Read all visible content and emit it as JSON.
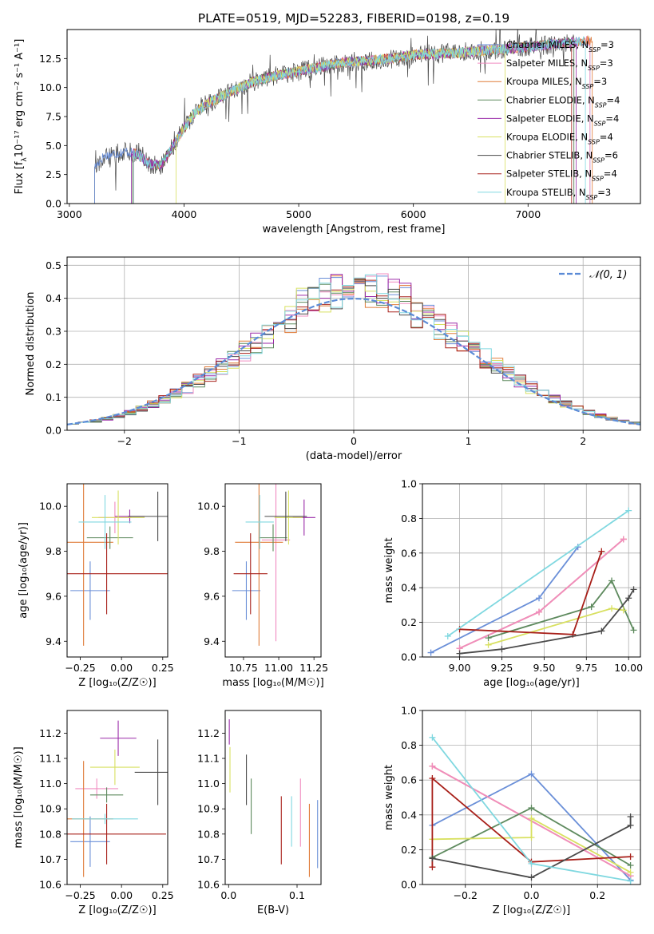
{
  "chart_data": [
    {
      "id": "spectrum",
      "type": "line",
      "title": "PLATE=0519, MJD=52283, FIBERID=0198, z=0.19",
      "xlabel": "wavelength [Angstrom, rest frame]",
      "ylabel_text": "Flux [f",
      "ylabel_sub": "λ",
      "ylabel_rest": "10⁻¹⁷ erg cm⁻² s⁻¹ A⁻¹]",
      "xlim": [
        2980,
        7980
      ],
      "ylim": [
        0,
        15
      ],
      "xticks": [
        3000,
        4000,
        5000,
        6000,
        7000
      ],
      "xtick_labels": [
        "3000",
        "4000",
        "5000",
        "6000",
        "7000"
      ],
      "yticks": [
        0,
        2.5,
        5,
        7.5,
        10,
        12.5
      ],
      "ytick_labels": [
        "0.0",
        "2.5",
        "5.0",
        "7.5",
        "10.0",
        "12.5"
      ],
      "continuum": {
        "x": [
          3220,
          3300,
          3500,
          3600,
          3700,
          3800,
          3900,
          4000,
          4100,
          4200,
          4400,
          4600,
          4800,
          5000,
          5200,
          5400,
          5600,
          5800,
          6000,
          6200,
          6400,
          6600,
          6800,
          7000,
          7200,
          7400,
          7500
        ],
        "y": [
          3.1,
          4.1,
          4.5,
          4.2,
          3.4,
          3.3,
          4.9,
          6.5,
          7.9,
          8.6,
          9.6,
          10.5,
          11.0,
          11.4,
          11.8,
          12.2,
          12.3,
          12.5,
          12.8,
          12.9,
          13.0,
          13.2,
          13.3,
          13.5,
          13.7,
          13.9,
          14.0
        ]
      },
      "legend": [
        {
          "name": "Chabrier MILES",
          "n": "3",
          "color": "#6a8fd8"
        },
        {
          "name": "Salpeter MILES",
          "n": "3",
          "color": "#f08cc0"
        },
        {
          "name": "Kroupa MILES",
          "n": "3",
          "color": "#e07b39"
        },
        {
          "name": "Chabrier ELODIE",
          "n": "4",
          "color": "#5e8a5e"
        },
        {
          "name": "Salpeter ELODIE",
          "n": "4",
          "color": "#9a2aa8"
        },
        {
          "name": "Kroupa ELODIE",
          "n": "4",
          "color": "#d8e060"
        },
        {
          "name": "Chabrier STELIB",
          "n": "6",
          "color": "#4a4a4a"
        },
        {
          "name": "Salpeter STELIB",
          "n": "4",
          "color": "#a8201a"
        },
        {
          "name": "Kroupa STELIB",
          "n": "3",
          "color": "#80d8e0"
        }
      ],
      "legend_n_label": "N",
      "legend_n_sub": "SSP"
    },
    {
      "id": "residuals",
      "type": "histogram",
      "xlabel": "(data-model)/error",
      "ylabel": "Normed distribution",
      "xlim": [
        -2.5,
        2.5
      ],
      "ylim": [
        0,
        0.525
      ],
      "xticks": [
        -2,
        -1,
        0,
        1,
        2
      ],
      "xtick_labels": [
        "−2",
        "−1",
        "0",
        "1",
        "2"
      ],
      "yticks": [
        0,
        0.1,
        0.2,
        0.3,
        0.4,
        0.5
      ],
      "ytick_labels": [
        "0.0",
        "0.1",
        "0.2",
        "0.3",
        "0.4",
        "0.5"
      ],
      "grid": true,
      "gaussian_label": "𝒩(0, 1)",
      "gaussian_color": "#5b8bd6",
      "legend_position": "top-right"
    },
    {
      "id": "age-vs-z",
      "type": "scatter",
      "xlabel": "Z [log₁₀(Z/Z☉)]",
      "ylabel": "age  [log₁₀(age/yr)]",
      "xlim": [
        -0.33,
        0.28
      ],
      "ylim": [
        9.33,
        10.1
      ],
      "xticks": [
        -0.25,
        0,
        0.25
      ],
      "xtick_labels": [
        "−0.25",
        "0.00",
        "0.25"
      ],
      "yticks": [
        9.4,
        9.6,
        9.8,
        10.0
      ],
      "ytick_labels": [
        "9.4",
        "9.6",
        "9.8",
        "10.0"
      ],
      "points": [
        {
          "color": "#6a8fd8",
          "x": -0.19,
          "xerr": 0.12,
          "y": 9.625,
          "yerr": 0.13
        },
        {
          "color": "#f08cc0",
          "x": -0.04,
          "xerr": 0.1,
          "y": 9.95,
          "yerr": 0.07
        },
        {
          "color": "#e07b39",
          "x": -0.23,
          "xerr": 0.18,
          "y": 9.84,
          "yerr": 0.46
        },
        {
          "color": "#5e8a5e",
          "x": -0.07,
          "xerr": 0.14,
          "y": 9.86,
          "yerr": 0.05
        },
        {
          "color": "#9a2aa8",
          "x": 0.05,
          "xerr": 0.09,
          "y": 9.955,
          "yerr": 0.03
        },
        {
          "color": "#d8e060",
          "x": -0.02,
          "xerr": 0.16,
          "y": 9.95,
          "yerr": 0.12
        },
        {
          "color": "#4a4a4a",
          "x": 0.22,
          "xerr": 0.18,
          "y": 9.955,
          "yerr": 0.11
        },
        {
          "color": "#a8201a",
          "x": -0.09,
          "xerr": 0.4,
          "y": 9.7,
          "yerr": 0.18
        },
        {
          "color": "#80d8e0",
          "x": -0.1,
          "xerr": 0.16,
          "y": 9.93,
          "yerr": 0.12
        }
      ]
    },
    {
      "id": "age-vs-mass",
      "type": "scatter",
      "xlabel": "mass [log₁₀(M/M☉)]",
      "ylabel": "",
      "xlim": [
        10.62,
        11.3
      ],
      "ylim": [
        9.33,
        10.1
      ],
      "xticks": [
        10.75,
        11.0,
        11.25
      ],
      "xtick_labels": [
        "10.75",
        "11.00",
        "11.25"
      ],
      "yticks": [
        9.4,
        9.6,
        9.8,
        10.0
      ],
      "ytick_labels": [
        "9.4",
        "9.6",
        "9.8",
        "10.0"
      ],
      "points": [
        {
          "color": "#6a8fd8",
          "x": 10.77,
          "xerr": 0.1,
          "y": 9.625,
          "yerr": 0.13
        },
        {
          "color": "#f08cc0",
          "x": 10.98,
          "xerr": 0.1,
          "y": 9.85,
          "yerr": 0.45
        },
        {
          "color": "#e07b39",
          "x": 10.86,
          "xerr": 0.17,
          "y": 9.84,
          "yerr": 0.46
        },
        {
          "color": "#5e8a5e",
          "x": 10.96,
          "xerr": 0.1,
          "y": 9.86,
          "yerr": 0.06
        },
        {
          "color": "#9a2aa8",
          "x": 11.18,
          "xerr": 0.08,
          "y": 9.95,
          "yerr": 0.08
        },
        {
          "color": "#d8e060",
          "x": 11.07,
          "xerr": 0.1,
          "y": 9.95,
          "yerr": 0.12
        },
        {
          "color": "#4a4a4a",
          "x": 11.05,
          "xerr": 0.15,
          "y": 9.955,
          "yerr": 0.11
        },
        {
          "color": "#a8201a",
          "x": 10.8,
          "xerr": 0.12,
          "y": 9.7,
          "yerr": 0.18
        },
        {
          "color": "#80d8e0",
          "x": 10.865,
          "xerr": 0.1,
          "y": 9.93,
          "yerr": 0.12
        }
      ]
    },
    {
      "id": "weight-vs-age",
      "type": "line",
      "xlabel": "age  [log₁₀(age/yr)]",
      "ylabel": "mass weight",
      "xlim": [
        8.78,
        10.07
      ],
      "ylim": [
        0,
        1
      ],
      "xticks": [
        9.0,
        9.25,
        9.5,
        9.75,
        10.0
      ],
      "xtick_labels": [
        "9.00",
        "9.25",
        "9.50",
        "9.75",
        "10.00"
      ],
      "yticks": [
        0,
        0.2,
        0.4,
        0.6,
        0.8,
        1.0
      ],
      "ytick_labels": [
        "0.0",
        "0.2",
        "0.4",
        "0.6",
        "0.8",
        "1.0"
      ],
      "grid": true,
      "series": [
        {
          "color": "#6a8fd8",
          "x": [
            8.83,
            9.47,
            9.7
          ],
          "y": [
            0.025,
            0.34,
            0.635
          ]
        },
        {
          "color": "#e07b39",
          "x": [
            9.0,
            9.47,
            9.97
          ],
          "y": [
            0.05,
            0.26,
            0.68
          ]
        },
        {
          "color": "#f08cc0",
          "x": [
            9.0,
            9.47,
            9.97
          ],
          "y": [
            0.05,
            0.26,
            0.68
          ]
        },
        {
          "color": "#5e8a5e",
          "x": [
            9.17,
            9.78,
            9.9,
            10.03
          ],
          "y": [
            0.11,
            0.29,
            0.44,
            0.155
          ]
        },
        {
          "color": "#d8e060",
          "x": [
            9.17,
            9.9,
            9.97
          ],
          "y": [
            0.07,
            0.28,
            0.27
          ]
        },
        {
          "color": "#a8201a",
          "x": [
            9.0,
            9.67,
            9.84
          ],
          "y": [
            0.16,
            0.13,
            0.61
          ]
        },
        {
          "color": "#4a4a4a",
          "x": [
            9.0,
            9.25,
            9.84,
            10.0,
            10.03
          ],
          "y": [
            0.02,
            0.045,
            0.15,
            0.34,
            0.39
          ]
        },
        {
          "color": "#80d8e0",
          "x": [
            8.93,
            10.0
          ],
          "y": [
            0.12,
            0.845
          ]
        }
      ]
    },
    {
      "id": "mass-vs-z",
      "type": "scatter",
      "xlabel": "Z [log₁₀(Z/Z☉)]",
      "ylabel": "mass [log₁₀(M/M☉)]",
      "xlim": [
        -0.33,
        0.28
      ],
      "ylim": [
        10.6,
        11.29
      ],
      "xticks": [
        -0.25,
        0,
        0.25
      ],
      "xtick_labels": [
        "−0.25",
        "0.00",
        "0.25"
      ],
      "yticks": [
        10.6,
        10.7,
        10.8,
        10.9,
        11.0,
        11.1,
        11.2
      ],
      "ytick_labels": [
        "10.6",
        "10.7",
        "10.8",
        "10.9",
        "11.0",
        "11.1",
        "11.2"
      ],
      "points": [
        {
          "color": "#6a8fd8",
          "x": -0.19,
          "xerr": 0.12,
          "y": 10.77,
          "yerr": 0.1
        },
        {
          "color": "#f08cc0",
          "x": -0.15,
          "xerr": 0.13,
          "y": 10.98,
          "yerr": 0.04
        },
        {
          "color": "#e07b39",
          "x": -0.23,
          "xerr": 0.18,
          "y": 10.86,
          "yerr": 0.23
        },
        {
          "color": "#5e8a5e",
          "x": -0.09,
          "xerr": 0.1,
          "y": 10.955,
          "yerr": 0.03
        },
        {
          "color": "#9a2aa8",
          "x": -0.02,
          "xerr": 0.11,
          "y": 11.18,
          "yerr": 0.07
        },
        {
          "color": "#d8e060",
          "x": -0.04,
          "xerr": 0.15,
          "y": 11.065,
          "yerr": 0.07
        },
        {
          "color": "#4a4a4a",
          "x": 0.22,
          "xerr": 0.14,
          "y": 11.045,
          "yerr": 0.13
        },
        {
          "color": "#a8201a",
          "x": -0.09,
          "xerr": 0.36,
          "y": 10.8,
          "yerr": 0.12
        },
        {
          "color": "#80d8e0",
          "x": -0.1,
          "xerr": 0.2,
          "y": 10.86,
          "yerr": 0.02
        }
      ]
    },
    {
      "id": "mass-vs-ebv",
      "type": "scatter",
      "xlabel": "E(B-V)",
      "ylabel": "",
      "xlim": [
        -0.005,
        0.135
      ],
      "ylim": [
        10.6,
        11.29
      ],
      "xticks": [
        0.0,
        0.1
      ],
      "xtick_labels": [
        "0.0",
        "0.1"
      ],
      "yticks": [
        10.6,
        10.7,
        10.8,
        10.9,
        11.0,
        11.1,
        11.2
      ],
      "ytick_labels": [
        "10.6",
        "10.7",
        "10.8",
        "10.9",
        "11.0",
        "11.1",
        "11.2"
      ],
      "points": [
        {
          "color": "#6a8fd8",
          "x": 0.13,
          "xerr": 0,
          "y": 10.8,
          "yerr": 0.135
        },
        {
          "color": "#f08cc0",
          "x": 0.105,
          "xerr": 0,
          "y": 10.885,
          "yerr": 0.135
        },
        {
          "color": "#e07b39",
          "x": 0.118,
          "xerr": 0,
          "y": 10.775,
          "yerr": 0.145
        },
        {
          "color": "#5e8a5e",
          "x": 0.033,
          "xerr": 0,
          "y": 10.91,
          "yerr": 0.11
        },
        {
          "color": "#9a2aa8",
          "x": 0.001,
          "xerr": 0,
          "y": 11.205,
          "yerr": 0.05
        },
        {
          "color": "#d8e060",
          "x": 0.002,
          "xerr": 0,
          "y": 11.055,
          "yerr": 0.09
        },
        {
          "color": "#4a4a4a",
          "x": 0.026,
          "xerr": 0,
          "y": 11.015,
          "yerr": 0.1
        },
        {
          "color": "#a8201a",
          "x": 0.077,
          "xerr": 0,
          "y": 10.815,
          "yerr": 0.135
        },
        {
          "color": "#80d8e0",
          "x": 0.092,
          "xerr": 0,
          "y": 10.85,
          "yerr": 0.1
        }
      ]
    },
    {
      "id": "weight-vs-z",
      "type": "line",
      "xlabel": "Z [log₁₀(Z/Z☉)]",
      "ylabel": "mass weight",
      "xlim": [
        -0.33,
        0.33
      ],
      "ylim": [
        0,
        1
      ],
      "xticks": [
        -0.2,
        0,
        0.2
      ],
      "xtick_labels": [
        "−0.2",
        "0.0",
        "0.2"
      ],
      "yticks": [
        0,
        0.2,
        0.4,
        0.6,
        0.8,
        1.0
      ],
      "ytick_labels": [
        "0.0",
        "0.2",
        "0.4",
        "0.6",
        "0.8",
        "1.0"
      ],
      "grid": true,
      "series": [
        {
          "color": "#6a8fd8",
          "x": [
            -0.3,
            0.0,
            0.3
          ],
          "y": [
            0.34,
            0.635,
            0.025
          ]
        },
        {
          "color": "#e07b39",
          "x": [
            -0.3,
            0.3
          ],
          "y": [
            0.68,
            0.05
          ]
        },
        {
          "color": "#f08cc0",
          "x": [
            -0.3,
            0.3
          ],
          "y": [
            0.68,
            0.05
          ]
        },
        {
          "color": "#5e8a5e",
          "x": [
            -0.3,
            0.0,
            0.3
          ],
          "y": [
            0.155,
            0.44,
            0.11
          ]
        },
        {
          "color": "#d8e060",
          "x": [
            -0.3,
            0.0,
            0.0,
            0.3
          ],
          "y": [
            0.26,
            0.27,
            0.38,
            0.07
          ]
        },
        {
          "color": "#a8201a",
          "x": [
            -0.3,
            -0.3,
            0.0,
            0.3
          ],
          "y": [
            0.1,
            0.61,
            0.13,
            0.16
          ]
        },
        {
          "color": "#4a4a4a",
          "x": [
            -0.3,
            0.0,
            0.3,
            0.3
          ],
          "y": [
            0.15,
            0.04,
            0.34,
            0.39
          ]
        },
        {
          "color": "#80d8e0",
          "x": [
            -0.3,
            0.0,
            0.3
          ],
          "y": [
            0.845,
            0.12,
            0.02
          ]
        }
      ]
    }
  ]
}
